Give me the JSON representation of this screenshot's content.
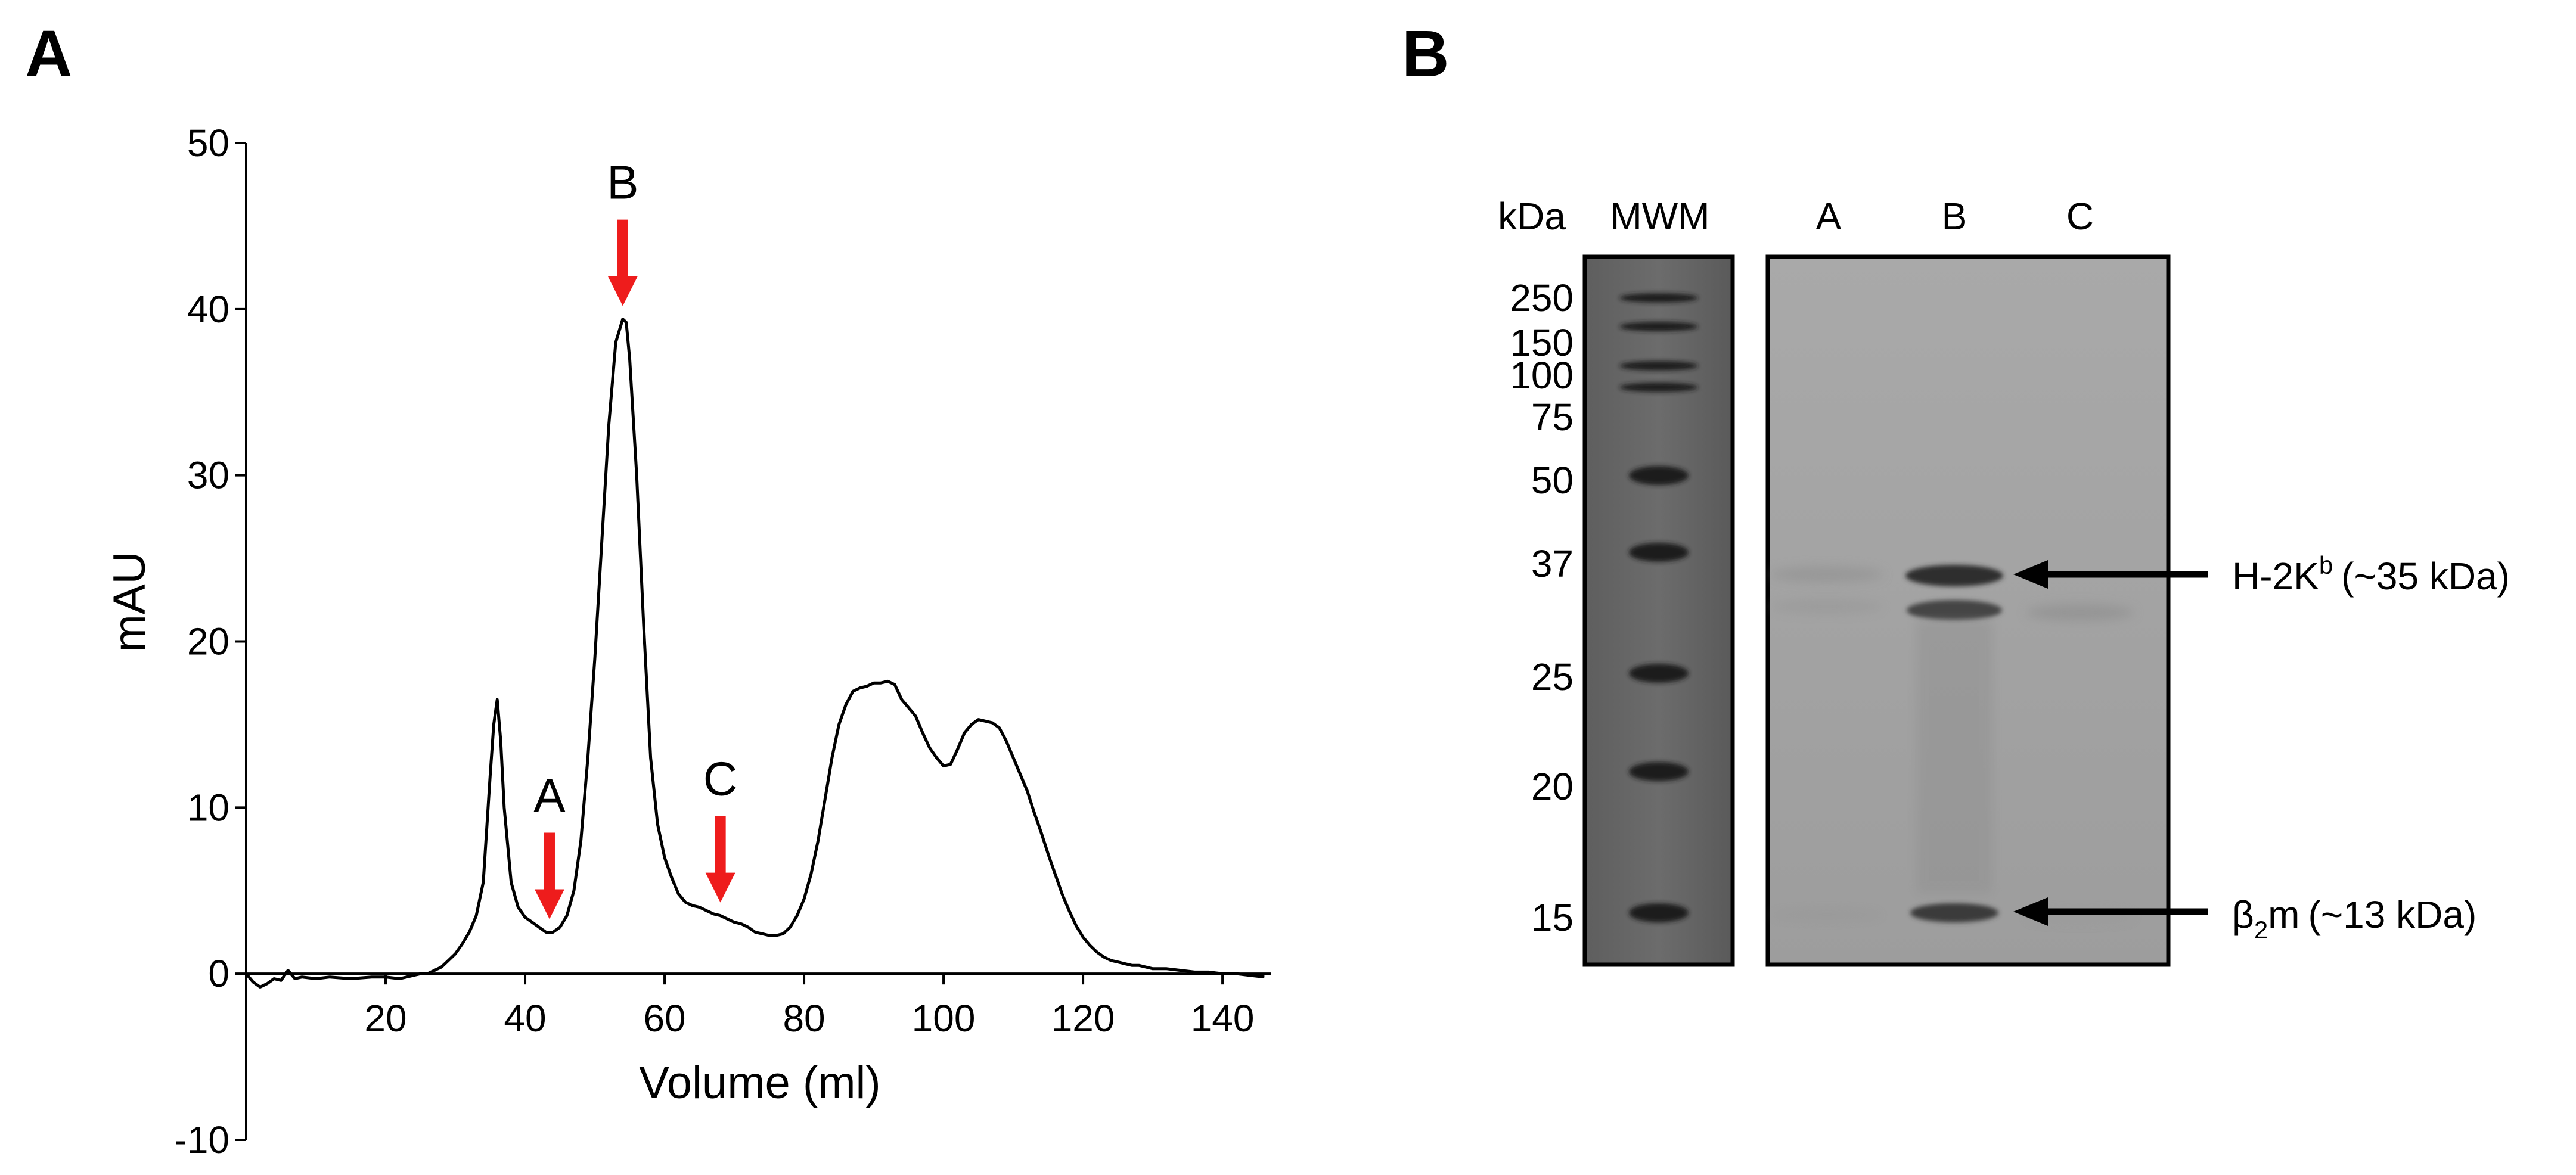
{
  "panels": {
    "a_label": "A",
    "b_label": "B"
  },
  "chart_data": [
    {
      "type": "line",
      "title": "",
      "xlabel": "Volume (ml)",
      "ylabel": "mAU",
      "xlim": [
        0,
        147
      ],
      "ylim": [
        -10,
        50
      ],
      "xticks": [
        20,
        40,
        60,
        80,
        100,
        120,
        140
      ],
      "yticks": [
        -10,
        0,
        10,
        20,
        30,
        40,
        50
      ],
      "series": [
        {
          "x": [
            0,
            1,
            2,
            3,
            4,
            5,
            6,
            7,
            8,
            10,
            12,
            15,
            18,
            20,
            22,
            24,
            25,
            26,
            27,
            28,
            29,
            30,
            31,
            32,
            33,
            34,
            35,
            35.5,
            36,
            36.5,
            37,
            38,
            39,
            40,
            41,
            42,
            43,
            44,
            45,
            46,
            47,
            48,
            49,
            50,
            51,
            52,
            53,
            54,
            54.5,
            55,
            56,
            57,
            58,
            59,
            60,
            61,
            62,
            63,
            64,
            65,
            66,
            67,
            68,
            69,
            70,
            71,
            72,
            73,
            74,
            75,
            76,
            77,
            78,
            79,
            80,
            81,
            82,
            83,
            84,
            85,
            86,
            87,
            88,
            89,
            90,
            91,
            92,
            93,
            94,
            95,
            96,
            97,
            98,
            99,
            100,
            101,
            102,
            103,
            104,
            105,
            106,
            107,
            108,
            109,
            110,
            111,
            112,
            113,
            114,
            115,
            116,
            117,
            118,
            119,
            120,
            121,
            122,
            123,
            124,
            125,
            126,
            127,
            128,
            129,
            130,
            132,
            134,
            136,
            138,
            140,
            142,
            144,
            146
          ],
          "values": [
            0,
            -0.5,
            -0.8,
            -0.6,
            -0.3,
            -0.4,
            0.2,
            -0.3,
            -0.2,
            -0.3,
            -0.2,
            -0.3,
            -0.2,
            -0.2,
            -0.3,
            -0.1,
            0,
            0,
            0.2,
            0.4,
            0.8,
            1.2,
            1.8,
            2.5,
            3.5,
            5.5,
            12,
            15,
            16.5,
            14,
            10,
            5.5,
            4,
            3.4,
            3.1,
            2.8,
            2.5,
            2.5,
            2.8,
            3.5,
            5,
            8,
            13,
            19,
            26,
            33,
            38,
            39.4,
            39.2,
            37,
            30,
            21,
            13,
            9,
            7,
            5.8,
            4.8,
            4.3,
            4.1,
            4,
            3.8,
            3.6,
            3.5,
            3.3,
            3.1,
            3,
            2.8,
            2.5,
            2.4,
            2.3,
            2.3,
            2.4,
            2.8,
            3.5,
            4.5,
            6,
            8,
            10.5,
            13,
            15,
            16.2,
            17,
            17.2,
            17.3,
            17.5,
            17.5,
            17.6,
            17.4,
            16.5,
            16,
            15.5,
            14.5,
            13.6,
            13,
            12.5,
            12.6,
            13.5,
            14.5,
            15,
            15.3,
            15.2,
            15.1,
            14.8,
            14,
            13,
            12,
            11,
            9.7,
            8.5,
            7.2,
            6,
            4.8,
            3.8,
            2.9,
            2.2,
            1.7,
            1.3,
            1,
            0.8,
            0.7,
            0.6,
            0.5,
            0.5,
            0.4,
            0.3,
            0.3,
            0.2,
            0.1,
            0.1,
            0,
            0,
            -0.1,
            -0.2
          ]
        }
      ],
      "annotations": [
        {
          "label": "A",
          "x": 43.5,
          "arrow_color": "#ee1c1c"
        },
        {
          "label": "B",
          "x": 54,
          "arrow_color": "#ee1c1c"
        },
        {
          "label": "C",
          "x": 68,
          "arrow_color": "#ee1c1c"
        }
      ]
    },
    {
      "type": "gel",
      "title": "",
      "ylabel": "kDa",
      "mw_lane_label": "MWM",
      "sample_lane_labels": [
        "A",
        "B",
        "C"
      ],
      "marker_kda": [
        250,
        150,
        100,
        75,
        50,
        37,
        25,
        20,
        15
      ],
      "bands": [
        {
          "name": "H-2K",
          "superscript": "b",
          "description": "(~35 kDa)",
          "kda": 35
        },
        {
          "name": "β",
          "subscript": "2",
          "suffix": "m",
          "description": "(~13 kDa)",
          "kda": 13
        }
      ]
    }
  ]
}
